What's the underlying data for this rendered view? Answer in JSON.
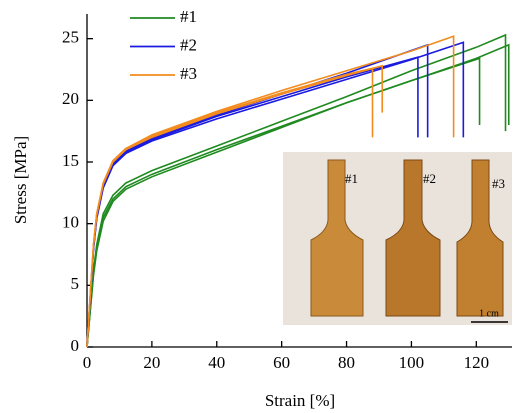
{
  "chart_data": {
    "type": "line",
    "xlabel": "Strain [%]",
    "ylabel": "Stress [MPa]",
    "xlim": [
      0,
      131
    ],
    "ylim": [
      0,
      27
    ],
    "xticks": [
      0,
      20,
      40,
      60,
      80,
      100,
      120
    ],
    "yticks": [
      0,
      5,
      10,
      15,
      20,
      25
    ],
    "legend": "upper left",
    "series": [
      {
        "name": "#1",
        "color": "#1f8a1f",
        "curves": [
          {
            "x": [
              0,
              1,
              2,
              3,
              5,
              8,
              12,
              20,
              40,
              60,
              80,
              100,
              121,
              121
            ],
            "values": [
              0,
              3,
              6,
              8,
              10.5,
              12,
              13,
              14,
              16,
              17.9,
              19.8,
              21.6,
              23.4,
              18
            ]
          },
          {
            "x": [
              0,
              1,
              2,
              3,
              5,
              8,
              12,
              20,
              40,
              60,
              80,
              100,
              120,
              129,
              129
            ],
            "values": [
              0,
              3.2,
              6.2,
              8.3,
              10.8,
              12.3,
              13.3,
              14.3,
              16.3,
              18.3,
              20.3,
              22.4,
              24.3,
              25.3,
              17.5
            ]
          },
          {
            "x": [
              0,
              1,
              2,
              3,
              5,
              8,
              12,
              20,
              40,
              60,
              80,
              100,
              120,
              130,
              130
            ],
            "values": [
              0,
              2.9,
              5.8,
              7.8,
              10.2,
              11.8,
              12.8,
              13.8,
              15.8,
              17.8,
              19.8,
              21.6,
              23.4,
              24.5,
              18
            ]
          }
        ]
      },
      {
        "name": "#2",
        "color": "#1a1ae0",
        "curves": [
          {
            "x": [
              0,
              1,
              2,
              3,
              5,
              8,
              12,
              20,
              40,
              60,
              80,
              102,
              102
            ],
            "values": [
              0,
              4,
              8,
              10.5,
              13,
              14.8,
              15.8,
              16.8,
              18.7,
              20.3,
              21.9,
              23.5,
              17
            ]
          },
          {
            "x": [
              0,
              1,
              2,
              3,
              5,
              8,
              12,
              20,
              40,
              60,
              80,
              105,
              105
            ],
            "values": [
              0,
              4.1,
              8.1,
              10.6,
              13.1,
              14.9,
              15.9,
              16.9,
              18.8,
              20.5,
              22.2,
              24.5,
              17
            ]
          },
          {
            "x": [
              0,
              1,
              2,
              3,
              5,
              8,
              12,
              20,
              40,
              60,
              80,
              100,
              116,
              116
            ],
            "values": [
              0,
              3.9,
              7.9,
              10.4,
              12.9,
              14.7,
              15.7,
              16.7,
              18.5,
              20.1,
              21.7,
              23.3,
              24.7,
              17
            ]
          }
        ]
      },
      {
        "name": "#3",
        "color": "#f28c1e",
        "curves": [
          {
            "x": [
              0,
              1,
              2,
              3,
              5,
              8,
              12,
              20,
              40,
              60,
              80,
              88,
              88
            ],
            "values": [
              0,
              4.2,
              8.3,
              10.8,
              13.3,
              15.1,
              16.1,
              17.1,
              19,
              20.6,
              22.1,
              22.6,
              17
            ]
          },
          {
            "x": [
              0,
              1,
              2,
              3,
              5,
              8,
              12,
              20,
              40,
              60,
              80,
              91,
              91
            ],
            "values": [
              0,
              4.1,
              8.2,
              10.7,
              13.2,
              15,
              16,
              17,
              18.9,
              20.5,
              22,
              22.8,
              19
            ]
          },
          {
            "x": [
              0,
              1,
              2,
              3,
              5,
              8,
              12,
              20,
              40,
              60,
              80,
              100,
              113,
              113
            ],
            "values": [
              0,
              4.2,
              8.3,
              10.8,
              13.3,
              15.1,
              16.1,
              17.2,
              19.1,
              20.8,
              22.4,
              24,
              25.2,
              17
            ]
          }
        ]
      }
    ],
    "inset_labels": [
      "#1",
      "#2",
      "#3"
    ],
    "scale_label": "1 cm"
  }
}
